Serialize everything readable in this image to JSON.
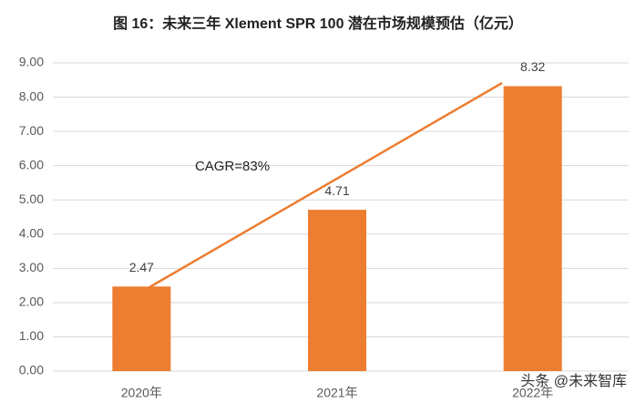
{
  "chart_data": {
    "type": "bar",
    "title": "图 16：未来三年 Xlement SPR 100 潜在市场规模预估（亿元）",
    "categories": [
      "2020年",
      "2021年",
      "2022年"
    ],
    "values": [
      2.47,
      4.71,
      8.32
    ],
    "color": "#ed7d31",
    "ylim": [
      0,
      9
    ],
    "yticks": [
      {
        "value": 0,
        "label": "0.00"
      },
      {
        "value": 1,
        "label": "1.00"
      },
      {
        "value": 2,
        "label": "2.00"
      },
      {
        "value": 3,
        "label": "3.00"
      },
      {
        "value": 4,
        "label": "4.00"
      },
      {
        "value": 5,
        "label": "5.00"
      },
      {
        "value": 6,
        "label": "6.00"
      },
      {
        "value": 7,
        "label": "7.00"
      },
      {
        "value": 8,
        "label": "8.00"
      },
      {
        "value": 9,
        "label": "9.00"
      }
    ],
    "grid": true,
    "annotation": "CAGR=83%",
    "watermark": "头条 @未来智库"
  }
}
